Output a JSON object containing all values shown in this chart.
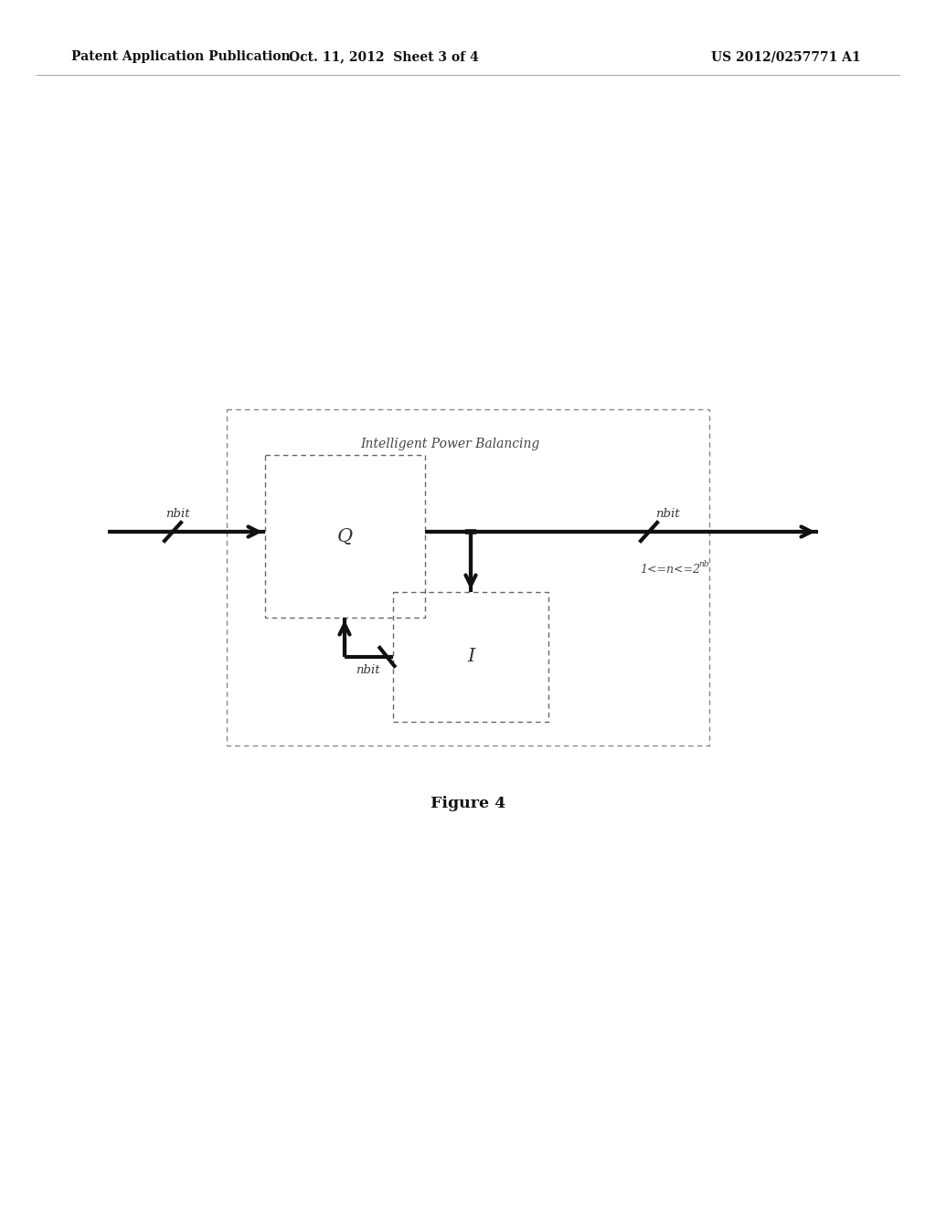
{
  "header_left": "Patent Application Publication",
  "header_mid": "Oct. 11, 2012  Sheet 3 of 4",
  "header_right": "US 2012/0257771 A1",
  "ipb_label": "Intelligent Power Balancing",
  "q_label": "Q",
  "i_label": "I",
  "nbit_in": "nbit",
  "nbit_out": "nbit",
  "nbit_fb": "nbit",
  "fig_caption": "Figure 4",
  "bg_color": "#ffffff",
  "dark": "#111111",
  "gray": "#666666",
  "light_gray": "#999999"
}
